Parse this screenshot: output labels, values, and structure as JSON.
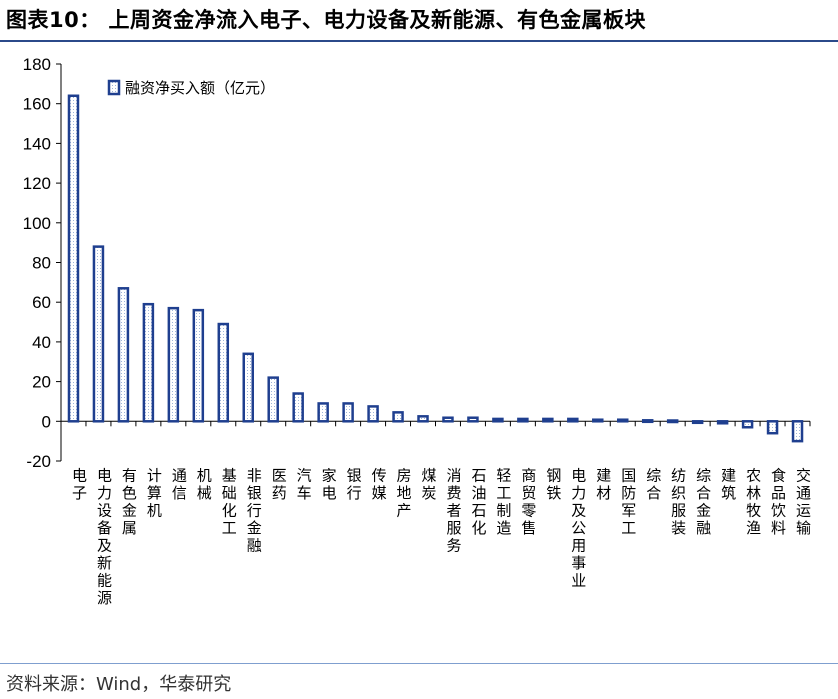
{
  "title": "图表10： 上周资金净流入电子、电力设备及新能源、有色金属板块",
  "source": "资料来源：Wind，华泰研究",
  "colors": {
    "bar_stroke": "#1f3f8f",
    "bar_fill": "#ffffff",
    "bar_dots": "#9fb4d8",
    "axis": "#000000",
    "title_rule": "#2b4a8a"
  },
  "chart_data": {
    "type": "bar",
    "legend_position": "top-left",
    "ylim": [
      -20,
      180
    ],
    "yticks": [
      -20,
      0,
      20,
      40,
      60,
      80,
      100,
      120,
      140,
      160,
      180
    ],
    "grid": false,
    "categories": [
      "电子",
      "电力设备及新能源",
      "有色金属",
      "计算机",
      "通信",
      "机械",
      "基础化工",
      "非银行金融",
      "医药",
      "汽车",
      "家电",
      "银行",
      "传媒",
      "房地产",
      "煤炭",
      "消费者服务",
      "石油石化",
      "轻工制造",
      "商贸零售",
      "钢铁",
      "电力及公用事业",
      "建材",
      "国防军工",
      "综合",
      "纺织服装",
      "综合金融",
      "建筑",
      "农林牧渔",
      "食品饮料",
      "交通运输"
    ],
    "series": [
      {
        "name": "融资净买入额（亿元）",
        "values": [
          164,
          88,
          67,
          59,
          57,
          56,
          49,
          34,
          22,
          14,
          9,
          9,
          7.5,
          4.5,
          2.5,
          1.8,
          1.8,
          1.2,
          1.2,
          1.2,
          1.2,
          0.8,
          0.8,
          0.5,
          0.4,
          -0.5,
          -1,
          -3,
          -6,
          -10
        ]
      }
    ]
  }
}
